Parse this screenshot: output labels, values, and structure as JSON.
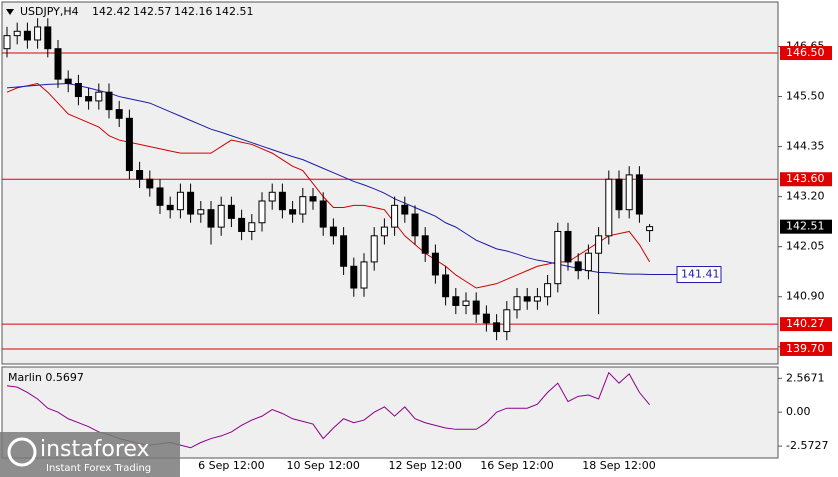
{
  "chart_data": [
    {
      "type": "candlestick",
      "title": "USDJPY,H4",
      "header_ohlc": [
        142.42,
        142.57,
        142.16,
        142.51
      ],
      "categories": [
        null,
        null,
        null,
        null,
        null,
        null,
        null,
        null,
        null,
        null,
        null,
        null,
        null,
        null,
        null,
        null,
        null,
        null,
        null,
        null,
        null,
        null,
        "6 Sep 12:00",
        null,
        null,
        null,
        null,
        null,
        null,
        null,
        null,
        "10 Sep 12:00",
        null,
        null,
        null,
        null,
        null,
        null,
        null,
        null,
        null,
        "12 Sep 12:00",
        null,
        null,
        null,
        null,
        null,
        null,
        null,
        null,
        "16 Sep 12:00",
        null,
        null,
        null,
        null,
        null,
        null,
        null,
        null,
        null,
        "18 Sep 12:00",
        null,
        null,
        null
      ],
      "open": [
        146.6,
        146.9,
        147.0,
        146.8,
        147.1,
        146.6,
        145.9,
        145.8,
        145.5,
        145.4,
        145.6,
        145.2,
        145.0,
        143.8,
        143.6,
        143.4,
        143.0,
        142.9,
        143.3,
        142.8,
        142.9,
        142.5,
        143.0,
        142.7,
        142.4,
        142.6,
        143.1,
        143.3,
        142.9,
        142.8,
        143.2,
        143.1,
        142.5,
        142.3,
        141.6,
        141.1,
        141.7,
        142.3,
        142.5,
        143.0,
        142.8,
        142.3,
        141.9,
        141.4,
        140.9,
        140.7,
        140.8,
        140.5,
        140.3,
        140.1,
        140.6,
        140.9,
        140.8,
        140.9,
        141.2,
        142.4,
        141.7,
        141.5,
        141.9,
        142.3,
        143.6,
        142.9,
        143.7,
        142.42
      ],
      "high": [
        147.1,
        147.2,
        147.2,
        147.3,
        147.3,
        146.8,
        146.1,
        146.0,
        145.7,
        145.8,
        145.8,
        145.4,
        145.2,
        144.0,
        143.8,
        143.6,
        143.2,
        143.5,
        143.5,
        143.1,
        143.1,
        143.2,
        143.2,
        142.9,
        142.8,
        143.3,
        143.5,
        143.5,
        143.1,
        143.4,
        143.4,
        143.3,
        142.7,
        142.5,
        141.8,
        141.9,
        142.5,
        142.7,
        143.2,
        143.2,
        143.0,
        142.5,
        142.1,
        141.6,
        141.1,
        141.0,
        141.0,
        140.7,
        140.5,
        140.8,
        141.1,
        141.1,
        141.1,
        141.4,
        142.6,
        142.6,
        141.9,
        142.1,
        142.5,
        143.8,
        143.8,
        143.9,
        143.9,
        142.57
      ],
      "low": [
        146.4,
        146.7,
        146.6,
        146.6,
        146.4,
        145.7,
        145.6,
        145.3,
        145.2,
        145.2,
        145.0,
        144.8,
        143.6,
        143.4,
        143.2,
        142.8,
        142.7,
        142.7,
        142.6,
        142.6,
        142.1,
        142.3,
        142.5,
        142.2,
        142.2,
        142.4,
        142.9,
        142.7,
        142.6,
        142.6,
        142.9,
        142.3,
        142.1,
        141.4,
        140.9,
        140.9,
        141.5,
        142.1,
        142.3,
        142.6,
        142.1,
        141.7,
        141.2,
        140.7,
        140.5,
        140.5,
        140.3,
        140.1,
        139.9,
        139.9,
        140.4,
        140.6,
        140.6,
        140.7,
        141.0,
        141.5,
        141.3,
        141.3,
        140.5,
        142.1,
        142.7,
        142.7,
        142.6,
        142.16
      ],
      "close": [
        146.9,
        147.0,
        146.8,
        147.1,
        146.6,
        145.9,
        145.8,
        145.5,
        145.4,
        145.6,
        145.2,
        145.0,
        143.8,
        143.6,
        143.4,
        143.0,
        142.9,
        143.3,
        142.8,
        142.9,
        142.5,
        143.0,
        142.7,
        142.4,
        142.6,
        143.1,
        143.3,
        142.9,
        142.8,
        143.2,
        143.1,
        142.5,
        142.3,
        141.6,
        141.1,
        141.7,
        142.3,
        142.5,
        143.0,
        142.8,
        142.3,
        141.9,
        141.4,
        140.9,
        140.7,
        140.8,
        140.5,
        140.3,
        140.1,
        140.6,
        140.9,
        140.8,
        140.9,
        141.2,
        142.4,
        141.7,
        141.5,
        141.9,
        142.3,
        143.6,
        142.9,
        143.7,
        142.8,
        142.51
      ],
      "ma_lines": [
        {
          "color": "#d00000",
          "values": [
            145.6,
            145.7,
            145.75,
            145.8,
            145.6,
            145.35,
            145.1,
            145.0,
            144.9,
            144.8,
            144.6,
            144.5,
            144.45,
            144.4,
            144.35,
            144.3,
            144.25,
            144.2,
            144.2,
            144.2,
            144.2,
            144.35,
            144.5,
            144.45,
            144.4,
            144.3,
            144.2,
            144.05,
            143.9,
            143.8,
            143.5,
            143.2,
            142.95,
            142.95,
            143.0,
            143.0,
            142.95,
            142.9,
            142.6,
            142.3,
            142.1,
            141.9,
            141.75,
            141.6,
            141.4,
            141.25,
            141.1,
            141.15,
            141.2,
            141.3,
            141.4,
            141.5,
            141.6,
            141.65,
            141.7,
            141.7,
            141.85,
            142.0,
            142.15,
            142.3,
            142.35,
            142.4,
            142.1,
            141.7
          ]
        },
        {
          "color": "#1c1ca8",
          "values": [
            145.7,
            145.72,
            145.74,
            145.76,
            145.78,
            145.79,
            145.8,
            145.75,
            145.7,
            145.64,
            145.58,
            145.5,
            145.45,
            145.4,
            145.35,
            145.25,
            145.15,
            145.05,
            144.95,
            144.85,
            144.75,
            144.68,
            144.6,
            144.52,
            144.44,
            144.36,
            144.28,
            144.2,
            144.12,
            144.05,
            143.95,
            143.85,
            143.75,
            143.65,
            143.55,
            143.47,
            143.38,
            143.28,
            143.15,
            143.05,
            142.95,
            142.85,
            142.75,
            142.6,
            142.5,
            142.35,
            142.2,
            142.1,
            142.0,
            141.95,
            141.88,
            141.8,
            141.74,
            141.7,
            141.65,
            141.6,
            141.55,
            141.5,
            141.46,
            141.45,
            141.43,
            141.42,
            141.42,
            141.41
          ]
        }
      ],
      "ma_label": {
        "value": 141.41,
        "color": "#1c1ca8"
      },
      "levels": [
        {
          "value": 146.5,
          "label": "146.50"
        },
        {
          "value": 143.6,
          "label": "143.60"
        },
        {
          "value": 140.27,
          "label": "140.27"
        },
        {
          "value": 139.7,
          "label": "139.70"
        }
      ],
      "level_color": "#e00000",
      "last_price": 142.51,
      "ylim": [
        139.4,
        147.65
      ],
      "yticks": [
        146.65,
        {
          "value": 145.5,
          "label": "145.50"
        },
        144.35,
        {
          "value": 143.2,
          "label": "143.20"
        },
        142.05,
        {
          "value": 140.9,
          "label": "140.90"
        },
        139.75
      ]
    },
    {
      "type": "line",
      "title": "Marlin 0.5697",
      "color": "#8b008b",
      "values": [
        2.0,
        1.9,
        1.5,
        1.0,
        0.3,
        0.0,
        -0.5,
        -0.8,
        -1.1,
        -1.5,
        -1.7,
        -2.0,
        -2.2,
        -2.4,
        -2.5,
        -2.4,
        -2.3,
        -2.5,
        -2.7,
        -2.3,
        -2.0,
        -1.8,
        -1.5,
        -1.0,
        -0.6,
        -0.3,
        0.2,
        -0.1,
        -0.5,
        -0.7,
        -0.9,
        -2.0,
        -1.2,
        -0.5,
        -0.8,
        -0.6,
        0.0,
        0.4,
        -0.3,
        0.4,
        -0.5,
        -0.8,
        -1.0,
        -1.2,
        -1.3,
        -1.3,
        -1.3,
        -0.8,
        0.0,
        0.3,
        0.3,
        0.3,
        0.6,
        1.5,
        2.2,
        0.8,
        1.2,
        1.3,
        1.0,
        3.0,
        2.2,
        2.9,
        1.5,
        0.5697
      ],
      "ylim": [
        -3.4,
        3.35
      ],
      "yticks": [
        2.5671,
        {
          "value": 0,
          "label": "0.00"
        },
        -2.5727
      ]
    }
  ],
  "watermark": {
    "brand": "instaforex",
    "tagline": "Instant Forex Trading"
  }
}
